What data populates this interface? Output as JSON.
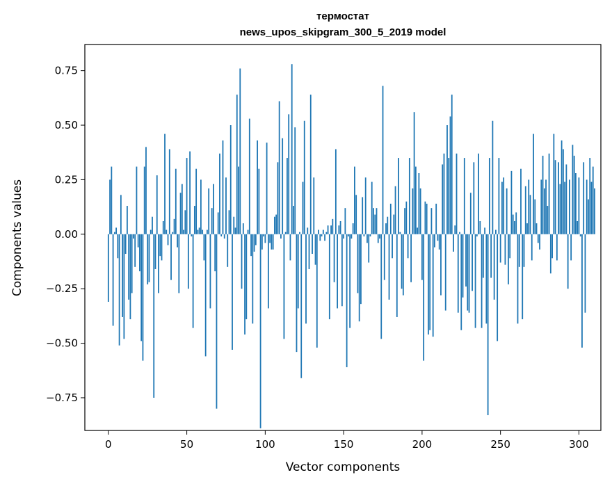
{
  "chart_data": {
    "type": "bar",
    "title_line1": "термостат",
    "title_line2": "news_upos_skipgram_300_5_2019 model",
    "xlabel": "Vector components",
    "ylabel": "Components values",
    "xlim": [
      -15,
      314
    ],
    "ylim": [
      -0.9,
      0.87
    ],
    "xticks": [
      0,
      50,
      100,
      150,
      200,
      250,
      300
    ],
    "yticks": [
      -0.75,
      -0.5,
      -0.25,
      0.0,
      0.25,
      0.5,
      0.75
    ],
    "ytick_labels": [
      "−0.75",
      "−0.50",
      "−0.25",
      "0.00",
      "0.25",
      "0.50",
      "0.75"
    ],
    "bar_color": "#1f77b4",
    "values": [
      -0.31,
      0.25,
      0.31,
      -0.42,
      0.01,
      0.03,
      -0.11,
      -0.51,
      0.18,
      -0.38,
      -0.48,
      -0.09,
      0.13,
      -0.3,
      -0.39,
      -0.27,
      -0.02,
      -0.15,
      0.31,
      -0.06,
      -0.17,
      -0.49,
      -0.58,
      0.31,
      0.4,
      -0.23,
      -0.22,
      0.02,
      0.08,
      -0.75,
      -0.16,
      0.27,
      -0.27,
      -0.1,
      -0.12,
      0.06,
      0.46,
      0.02,
      -0.05,
      0.39,
      -0.21,
      0.01,
      0.07,
      0.3,
      -0.06,
      -0.27,
      0.19,
      0.23,
      0.02,
      0.11,
      0.35,
      -0.25,
      0.38,
      -0.01,
      -0.43,
      0.13,
      0.3,
      0.02,
      0.03,
      0.25,
      0.02,
      -0.12,
      -0.56,
      0.02,
      0.21,
      -0.34,
      0.12,
      0.23,
      -0.17,
      -0.8,
      0.1,
      0.37,
      -0.01,
      0.43,
      -0.02,
      0.26,
      -0.15,
      0.11,
      0.5,
      -0.53,
      0.08,
      0.03,
      0.64,
      0.31,
      0.76,
      -0.25,
      0.05,
      -0.46,
      -0.39,
      0.02,
      0.53,
      -0.1,
      -0.41,
      -0.08,
      -0.05,
      0.43,
      0.3,
      -0.89,
      -0.07,
      -0.01,
      -0.04,
      0.42,
      -0.34,
      -0.04,
      -0.07,
      -0.07,
      0.08,
      0.09,
      0.33,
      0.61,
      -0.02,
      0.44,
      -0.48,
      0.01,
      0.35,
      0.55,
      -0.12,
      0.78,
      0.13,
      0.49,
      -0.54,
      -0.34,
      0.01,
      -0.66,
      0.24,
      0.52,
      -0.41,
      0.03,
      -0.16,
      0.64,
      -0.09,
      0.26,
      -0.14,
      -0.52,
      0.02,
      -0.03,
      -0.01,
      0.02,
      -0.03,
      0.01,
      0.04,
      -0.39,
      0.04,
      0.07,
      -0.22,
      0.39,
      -0.34,
      0.04,
      0.06,
      -0.33,
      -0.02,
      0.12,
      -0.61,
      -0.01,
      -0.43,
      -0.02,
      0.05,
      0.31,
      0.18,
      -0.27,
      -0.4,
      -0.32,
      0.17,
      -0.01,
      0.26,
      -0.04,
      -0.13,
      -0.01,
      0.24,
      0.12,
      0.09,
      0.12,
      -0.04,
      -0.02,
      -0.48,
      0.68,
      -0.21,
      0.05,
      0.08,
      -0.3,
      0.14,
      -0.11,
      0.09,
      0.22,
      -0.38,
      0.35,
      0.01,
      -0.25,
      -0.28,
      0.12,
      0.15,
      -0.11,
      0.35,
      -0.22,
      0.21,
      0.56,
      0.31,
      0.03,
      0.28,
      0.21,
      -0.21,
      -0.58,
      0.15,
      0.14,
      -0.46,
      -0.44,
      0.12,
      -0.47,
      -0.06,
      0.14,
      -0.03,
      -0.07,
      -0.28,
      0.32,
      0.37,
      -0.35,
      0.5,
      0.35,
      0.54,
      0.64,
      -0.08,
      0.04,
      0.37,
      -0.36,
      0.01,
      -0.44,
      -0.29,
      0.35,
      -0.24,
      -0.35,
      -0.36,
      0.19,
      -0.26,
      0.33,
      -0.43,
      -0.01,
      0.37,
      0.06,
      -0.43,
      -0.2,
      0.03,
      -0.41,
      -0.83,
      0.35,
      -0.2,
      0.52,
      -0.3,
      0.02,
      -0.49,
      0.35,
      -0.13,
      0.24,
      0.26,
      -0.14,
      0.21,
      -0.23,
      -0.11,
      0.29,
      0.09,
      0.06,
      0.1,
      -0.41,
      -0.15,
      0.3,
      -0.39,
      -0.15,
      0.22,
      0.05,
      0.25,
      0.18,
      -0.12,
      0.46,
      0.16,
      0.05,
      -0.04,
      -0.07,
      0.25,
      0.36,
      0.21,
      0.25,
      0.13,
      0.37,
      -0.18,
      -0.11,
      0.46,
      0.34,
      -0.12,
      0.33,
      0.23,
      0.43,
      0.39,
      0.24,
      0.32,
      -0.25,
      0.25,
      -0.12,
      0.41,
      0.36,
      0.28,
      0.06,
      0.26,
      -0.01,
      -0.52,
      0.33,
      -0.36,
      0.25,
      0.16,
      0.35,
      0.24,
      0.31,
      0.21
    ]
  }
}
